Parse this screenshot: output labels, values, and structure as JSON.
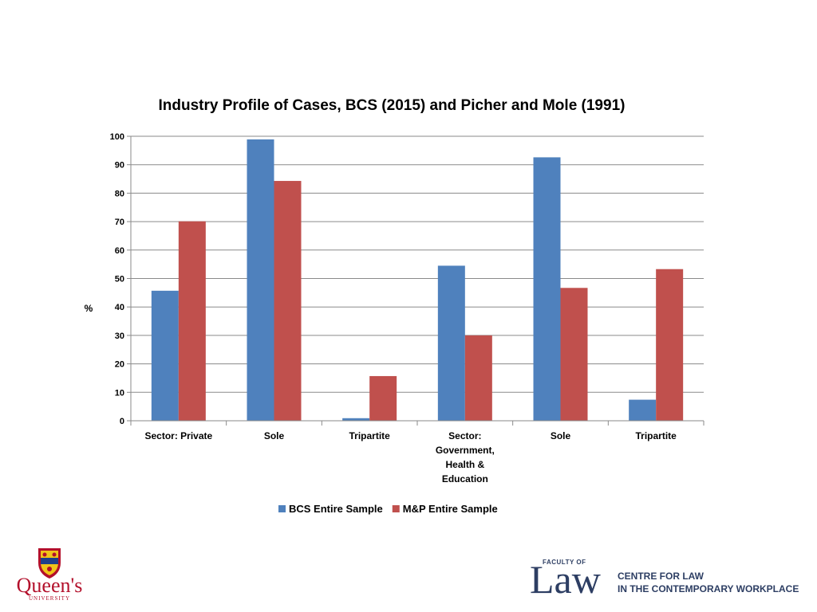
{
  "chart_data": {
    "type": "bar",
    "title": "Industry Profile of Cases, BCS (2015) and Picher and Mole (1991)",
    "ylabel": "%",
    "ylim": [
      0,
      100
    ],
    "yticks": [
      0,
      10,
      20,
      30,
      40,
      50,
      60,
      70,
      80,
      90,
      100
    ],
    "grid": true,
    "legend_position": "bottom",
    "categories": [
      [
        "Sector: Private"
      ],
      [
        "Sole"
      ],
      [
        "Tripartite"
      ],
      [
        "Sector:",
        "Government,",
        "Health &",
        "Education"
      ],
      [
        "Sole"
      ],
      [
        "Tripartite"
      ]
    ],
    "series": [
      {
        "name": "BCS Entire Sample",
        "color": "#4f81bd",
        "values": [
          45.7,
          98.9,
          0.9,
          54.5,
          92.6,
          7.4
        ]
      },
      {
        "name": "M&P Entire Sample",
        "color": "#c0504d",
        "values": [
          70.1,
          84.3,
          15.7,
          30.0,
          46.7,
          53.3
        ]
      }
    ]
  },
  "logos": {
    "queens": {
      "word": "Queen's",
      "sub": "UNIVERSITY"
    },
    "law": {
      "faculty": "FACULTY OF",
      "word": "Law",
      "line1": "CENTRE FOR LAW",
      "line2": "IN THE CONTEMPORARY WORKPLACE"
    }
  }
}
